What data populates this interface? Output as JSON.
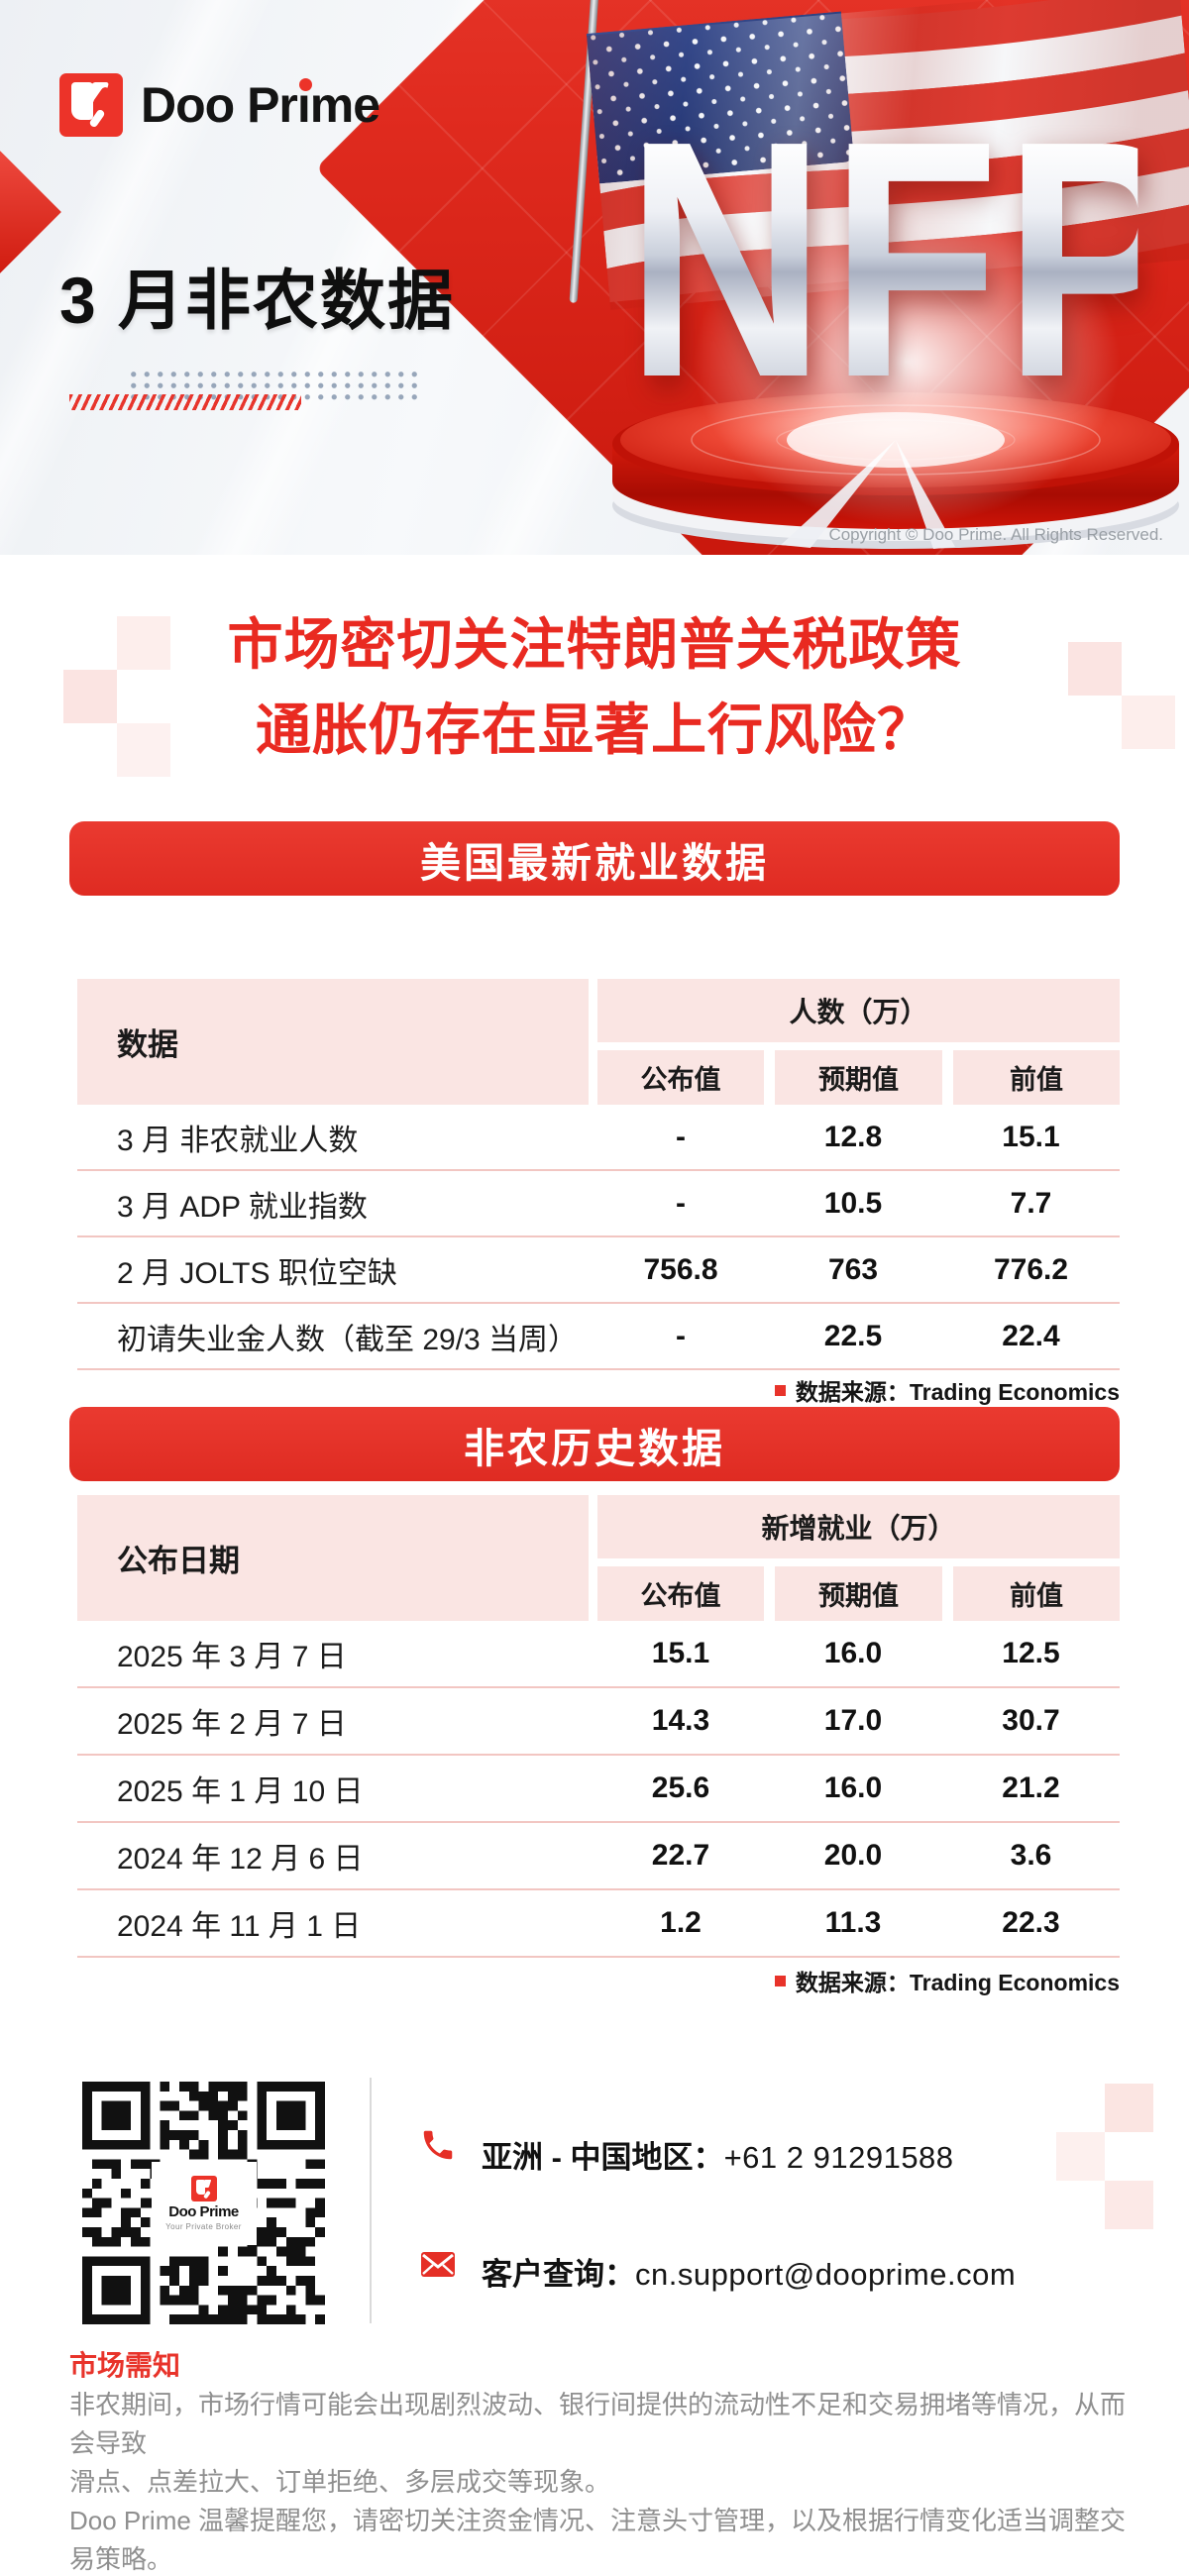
{
  "page": {
    "copyright": "Copyright © Doo Prime. All Rights Reserved."
  },
  "header": {
    "brand": "Doo Prime",
    "title": "3 月非农数据",
    "nfp": "NFP"
  },
  "headline": {
    "line1": "市场密切关注特朗普关税政策",
    "line2": "通胀仍存在显著上行风险？"
  },
  "sections": [
    {
      "banner": "美国最新就业数据",
      "corner": "数据",
      "group": "人数（万）",
      "columns": [
        "公布值",
        "预期值",
        "前值"
      ],
      "rows": [
        {
          "label": "3 月 非农就业人数",
          "values": [
            "-",
            "12.8",
            "15.1"
          ]
        },
        {
          "label": "3 月 ADP 就业指数",
          "values": [
            "-",
            "10.5",
            "7.7"
          ]
        },
        {
          "label": "2 月 JOLTS 职位空缺",
          "values": [
            "756.8",
            "763",
            "776.2"
          ]
        },
        {
          "label": "初请失业金人数（截至 29/3 当周）",
          "values": [
            "-",
            "22.5",
            "22.4"
          ]
        }
      ],
      "source": "数据来源：Trading Economics"
    },
    {
      "banner": "非农历史数据",
      "corner": "公布日期",
      "group": "新增就业（万）",
      "columns": [
        "公布值",
        "预期值",
        "前值"
      ],
      "rows": [
        {
          "label": "2025 年 3 月 7 日",
          "values": [
            "15.1",
            "16.0",
            "12.5"
          ]
        },
        {
          "label": "2025 年 2 月 7 日",
          "values": [
            "14.3",
            "17.0",
            "30.7"
          ]
        },
        {
          "label": "2025 年 1 月 10 日",
          "values": [
            "25.6",
            "16.0",
            "21.2"
          ]
        },
        {
          "label": "2024 年 12 月 6 日",
          "values": [
            "22.7",
            "20.0",
            "3.6"
          ]
        },
        {
          "label": "2024 年 11 月 1 日",
          "values": [
            "1.2",
            "11.3",
            "22.3"
          ]
        }
      ],
      "source": "数据来源：Trading Economics"
    }
  ],
  "contact": {
    "qr_brand": "Doo Prime",
    "qr_tagline": "Your Private Broker",
    "phone_label": "亚洲 - 中国地区：",
    "phone_number": "+61 2 91291588",
    "email_label": "客户查询：",
    "email_address": "cn.support@dooprime.com"
  },
  "footer": {
    "title": "市场需知",
    "line1": "非农期间，市场行情可能会出现剧烈波动、银行间提供的流动性不足和交易拥堵等情况，从而会导致",
    "line2": "滑点、点差拉大、订单拒绝、多层成交等现象。",
    "line3": "Doo Prime 温馨提醒您，请密切关注资金情况、注意头寸管理，以及根据行情变化适当调整交易策略。"
  },
  "colors": {
    "brand_red": "#e8332a",
    "banner_red": "#e5342c",
    "headline_red": "#e92a21",
    "table_header_pink": "#fae5e3",
    "table_line_pink": "#f2c6c2",
    "text_dark": "#1a1a1a",
    "footer_gray": "#8f8f8f",
    "copyright_gray": "#9aa0a6"
  }
}
